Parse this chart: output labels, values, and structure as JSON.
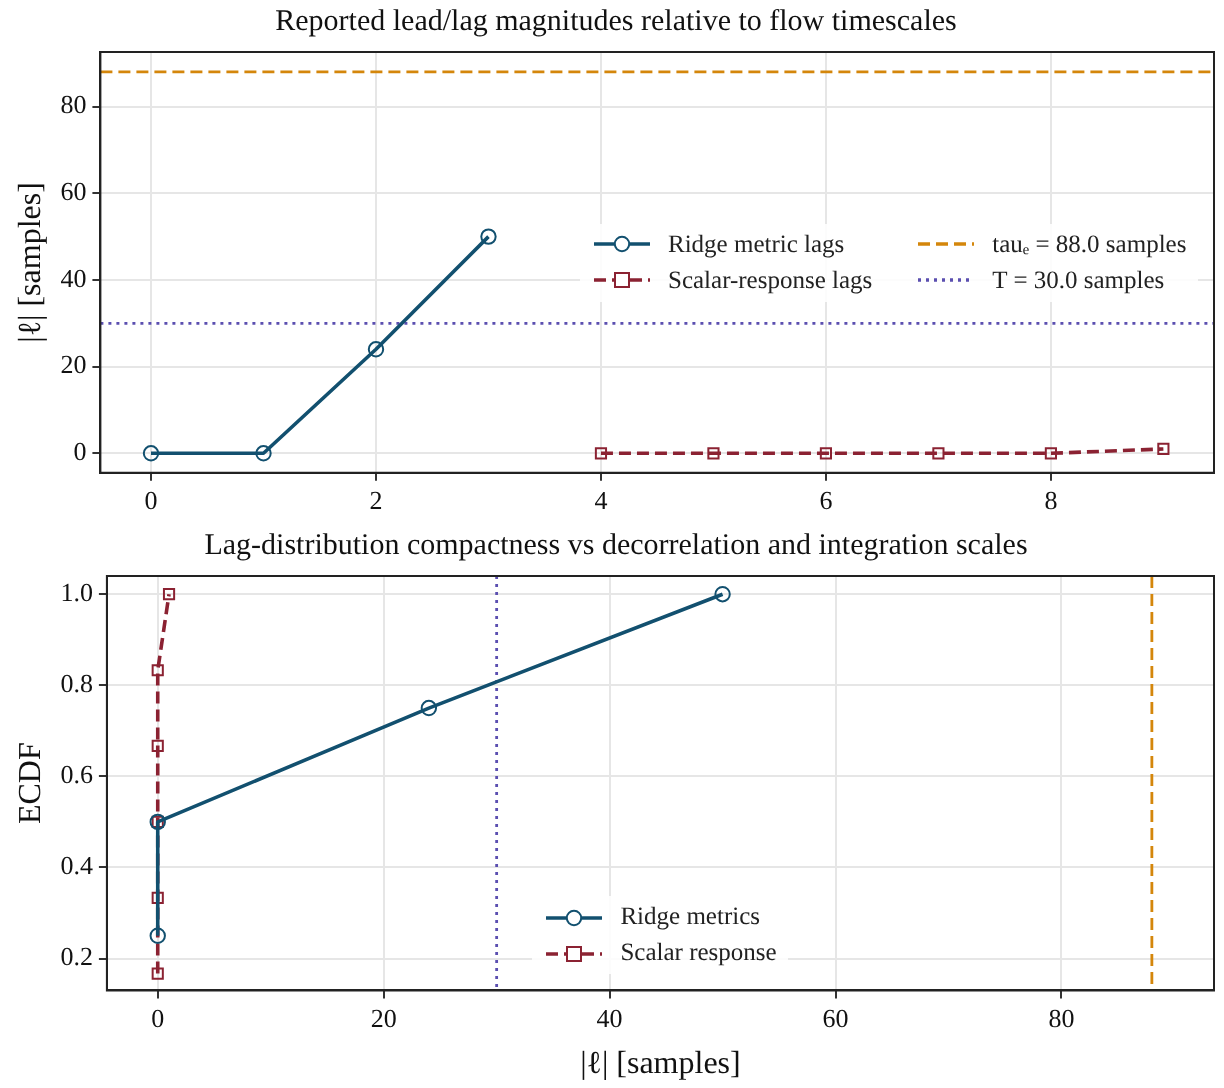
{
  "chart_data": [
    {
      "type": "line",
      "title": "Reported lead/lag magnitudes relative to flow timescales",
      "ylabel": "|ℓ| [samples]",
      "series": [
        {
          "name": "Ridge metric lags",
          "color": "#12506f",
          "x": [
            0,
            1,
            2,
            3
          ],
          "values": [
            0,
            0,
            24,
            50
          ],
          "marker": "circle",
          "line_style": "solid"
        },
        {
          "name": "Scalar-response lags",
          "color": "#8b2232",
          "x": [
            4,
            5,
            6,
            7,
            8,
            9
          ],
          "values": [
            0,
            0,
            0,
            0,
            0,
            1
          ],
          "marker": "square",
          "line_style": "dashed"
        }
      ],
      "xlim": [
        -0.45,
        9.45
      ],
      "xticks": [
        0,
        2,
        4,
        6,
        8
      ],
      "ylim": [
        -4.5,
        92.6
      ],
      "yticks": [
        0,
        20,
        40,
        60,
        80
      ],
      "ref_lines": [
        {
          "axis": "y",
          "value": 88,
          "label": "tauₑ = 88.0 samples",
          "color": "#d4860b",
          "line_style": "dashed"
        },
        {
          "axis": "y",
          "value": 30,
          "label": "T = 30.0 samples",
          "color": "#5b4fb0",
          "line_style": "dotted"
        }
      ],
      "grid": true,
      "legend": "center right"
    },
    {
      "type": "line",
      "title": "Lag-distribution compactness vs decorrelation and integration scales",
      "xlabel": "|ℓ| [samples]",
      "ylabel": "ECDF",
      "series": [
        {
          "name": "Ridge metrics",
          "color": "#12506f",
          "x": [
            0,
            0,
            24,
            50
          ],
          "values": [
            0.25,
            0.5,
            0.75,
            1.0
          ],
          "marker": "circle",
          "line_style": "solid"
        },
        {
          "name": "Scalar response",
          "color": "#8b2232",
          "x": [
            0,
            0,
            0,
            0,
            0,
            1
          ],
          "values": [
            0.167,
            0.333,
            0.5,
            0.667,
            0.833,
            1.0
          ],
          "marker": "square",
          "line_style": "dashed"
        }
      ],
      "xlim": [
        -4.5,
        93.5
      ],
      "xticks": [
        0,
        20,
        40,
        60,
        80
      ],
      "ylim": [
        0.13,
        1.04
      ],
      "yticks": [
        {
          "value": 0.2,
          "label": "0.2"
        },
        {
          "value": 0.4,
          "label": "0.4"
        },
        {
          "value": 0.6,
          "label": "0.6"
        },
        {
          "value": 0.8,
          "label": "0.8"
        },
        {
          "value": 1.0,
          "label": "1.0"
        }
      ],
      "ref_lines": [
        {
          "axis": "x",
          "value": 30,
          "color": "#5b4fb0",
          "line_style": "dotted"
        },
        {
          "axis": "x",
          "value": 88,
          "color": "#d4860b",
          "line_style": "dashed"
        }
      ],
      "grid": true,
      "legend": "bottom"
    }
  ]
}
